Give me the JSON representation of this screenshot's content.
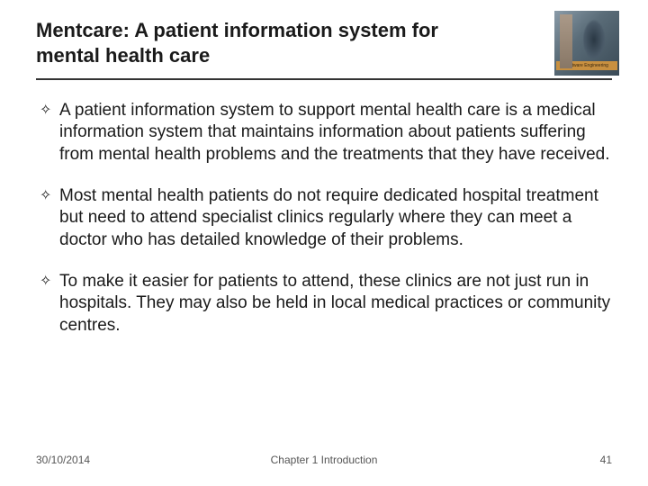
{
  "title": "Mentcare: A patient information system for mental health care",
  "logo_label": "Software Engineering",
  "bullets": [
    "A patient information system to support mental health care is a medical information system that maintains information about patients suffering from mental health problems and the treatments that they have received.",
    "Most mental health patients do not require dedicated hospital treatment but need to attend specialist clinics regularly where they can meet a doctor who has detailed knowledge of their problems.",
    "To make it easier for patients to attend, these clinics are not just run in hospitals. They may also be held in local medical practices or community centres."
  ],
  "footer": {
    "date": "30/10/2014",
    "chapter": "Chapter 1 Introduction",
    "page": "41"
  },
  "colors": {
    "text": "#1a1a1a",
    "divider": "#333333",
    "footer_text": "#555555",
    "background": "#ffffff"
  },
  "bullet_marker": "✧"
}
